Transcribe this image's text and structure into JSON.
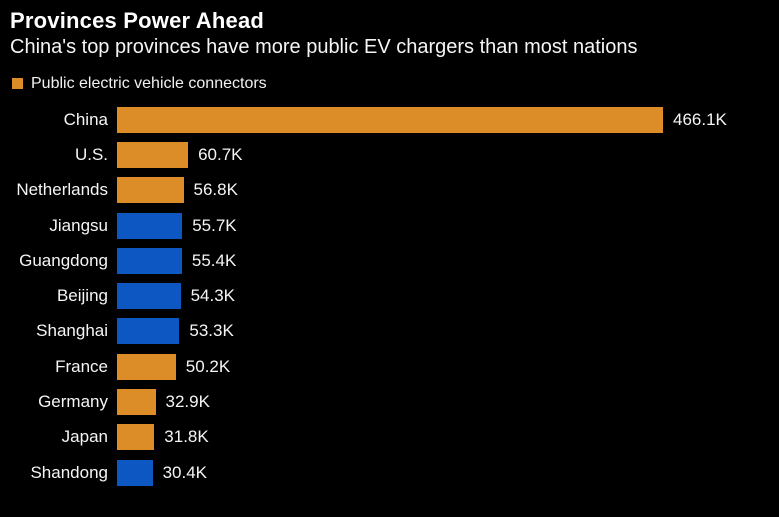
{
  "header": {
    "title": "Provinces Power Ahead",
    "subtitle": "China's top provinces have more public EV chargers than most nations"
  },
  "legend": {
    "label": "Public electric vehicle connectors"
  },
  "colors": {
    "background": "#000000",
    "text": "#f5f5f5",
    "country": "#DC8D28",
    "province": "#0D57C2"
  },
  "chart_data": {
    "type": "bar",
    "orientation": "horizontal",
    "title": "Provinces Power Ahead",
    "subtitle": "China's top provinces have more public EV chargers than most nations",
    "legend_entries": [
      {
        "label": "Public electric vehicle connectors",
        "color": "#DC8D28"
      }
    ],
    "categories": [
      "China",
      "U.S.",
      "Netherlands",
      "Jiangsu",
      "Guangdong",
      "Beijing",
      "Shanghai",
      "France",
      "Germany",
      "Japan",
      "Shandong"
    ],
    "values_thousands": [
      466.1,
      60.7,
      56.8,
      55.7,
      55.4,
      54.3,
      53.3,
      50.2,
      32.9,
      31.8,
      30.4
    ],
    "value_labels": [
      "466.1K",
      "60.7K",
      "56.8K",
      "55.7K",
      "55.4K",
      "54.3K",
      "53.3K",
      "50.2K",
      "32.9K",
      "31.8K",
      "30.4K"
    ],
    "groups": [
      "country",
      "country",
      "country",
      "province",
      "province",
      "province",
      "province",
      "country",
      "country",
      "country",
      "province"
    ],
    "bar_colors": [
      "#DC8D28",
      "#DC8D28",
      "#DC8D28",
      "#0D57C2",
      "#0D57C2",
      "#0D57C2",
      "#0D57C2",
      "#DC8D28",
      "#DC8D28",
      "#DC8D28",
      "#0D57C2"
    ],
    "xlim_thousands": [
      0,
      466.1
    ],
    "grid": false,
    "legend_position": "top-left"
  }
}
